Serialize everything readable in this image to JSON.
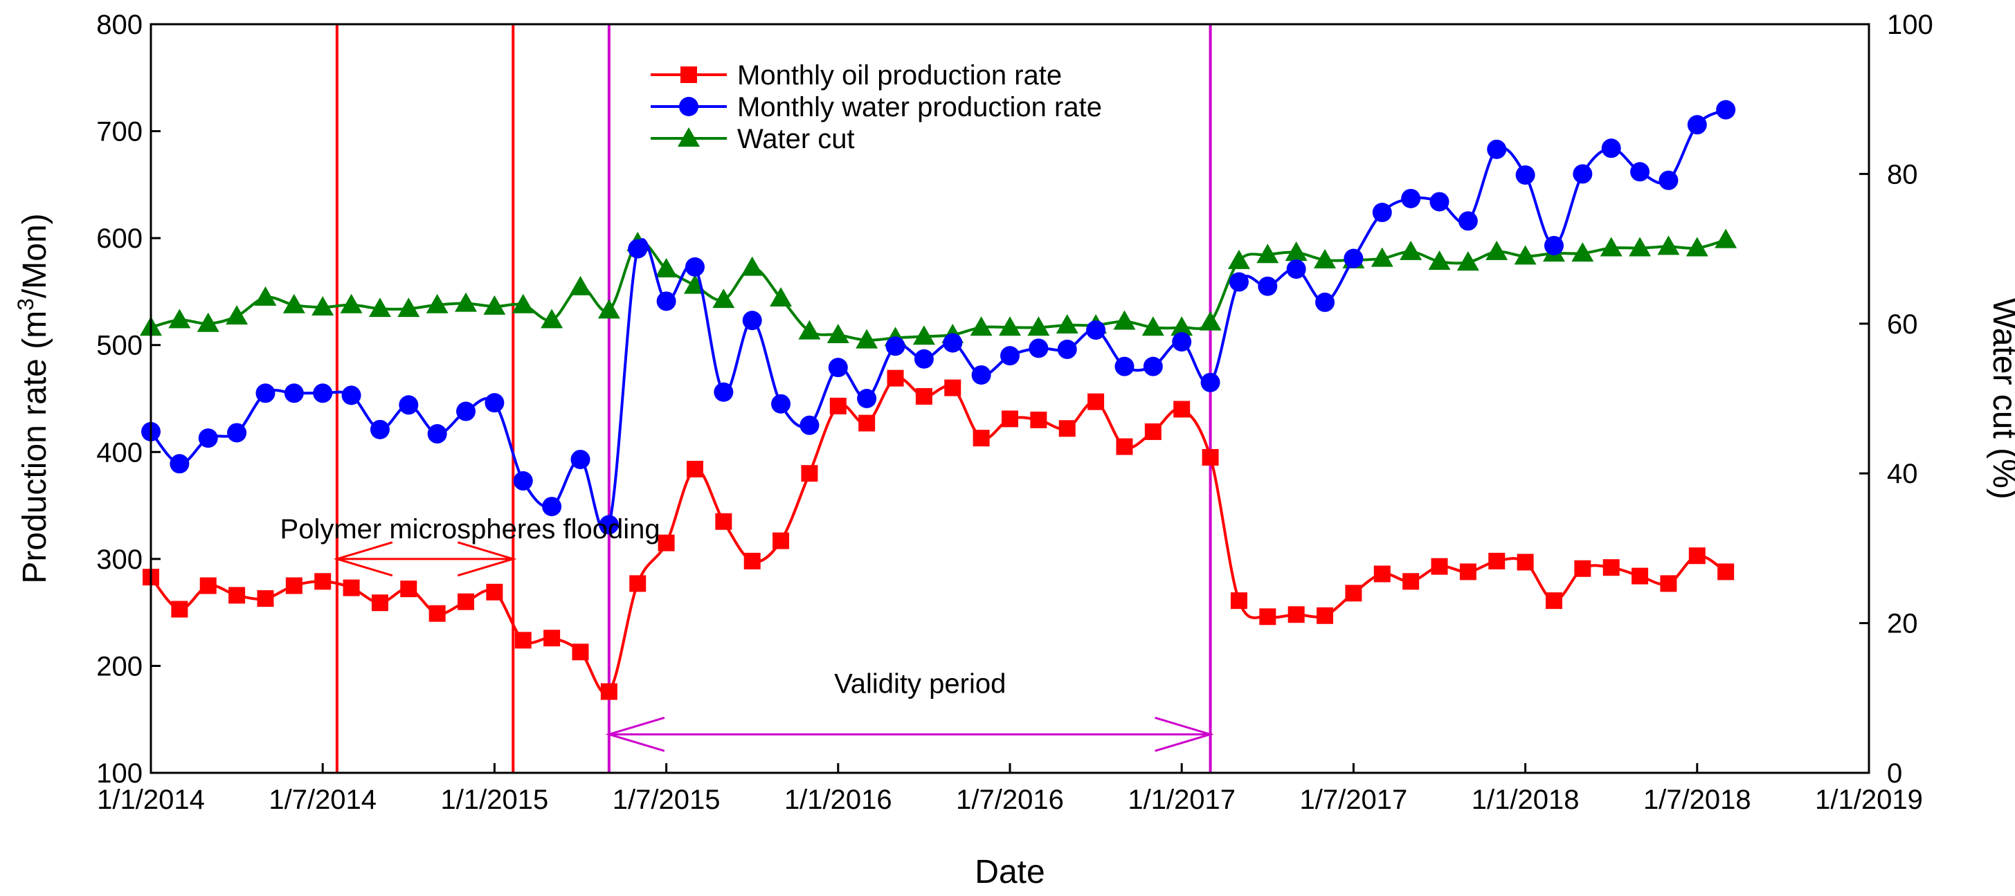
{
  "chart_data": {
    "type": "line",
    "xlabel": "Date",
    "ylabel": "Production rate (m3/Mon)",
    "ylabel_parts": {
      "pre": "Production rate (m",
      "sup": "3",
      "post": "/Mon)"
    },
    "y2label": "Water cut (%)",
    "ylim": [
      100,
      800
    ],
    "y2lim": [
      0,
      100
    ],
    "xlim_months": [
      0,
      60
    ],
    "x_ticks": [
      {
        "m": 0,
        "label": "1/1/2014"
      },
      {
        "m": 6,
        "label": "1/7/2014"
      },
      {
        "m": 12,
        "label": "1/1/2015"
      },
      {
        "m": 18,
        "label": "1/7/2015"
      },
      {
        "m": 24,
        "label": "1/1/2016"
      },
      {
        "m": 30,
        "label": "1/7/2016"
      },
      {
        "m": 36,
        "label": "1/1/2017"
      },
      {
        "m": 42,
        "label": "1/7/2017"
      },
      {
        "m": 48,
        "label": "1/1/2018"
      },
      {
        "m": 54,
        "label": "1/7/2018"
      },
      {
        "m": 60,
        "label": "1/1/2019"
      }
    ],
    "y_ticks": [
      100,
      200,
      300,
      400,
      500,
      600,
      700,
      800
    ],
    "y2_ticks": [
      0,
      20,
      40,
      60,
      80,
      100
    ],
    "grid": false,
    "legend_position": "top-center",
    "series": [
      {
        "name": "Monthly oil production rate",
        "axis": "left",
        "color": "#ff0000",
        "marker": "square",
        "values": [
          283,
          253,
          275,
          266,
          263,
          275,
          279,
          273,
          259,
          272,
          249,
          260,
          269,
          224,
          226,
          213,
          176,
          277,
          315,
          384,
          335,
          298,
          317,
          380,
          443,
          427,
          469,
          452,
          460,
          413,
          431,
          430,
          422,
          447,
          405,
          419,
          440,
          395,
          261,
          246,
          248,
          247,
          268,
          286,
          279,
          293,
          288,
          298,
          297,
          261,
          291,
          292,
          284,
          277,
          303,
          288
        ]
      },
      {
        "name": "Monthly water production rate",
        "axis": "left",
        "color": "#0000ff",
        "marker": "circle",
        "values": [
          419,
          389,
          413,
          418,
          455,
          455,
          455,
          453,
          421,
          444,
          417,
          438,
          446,
          373,
          349,
          393,
          332,
          590,
          541,
          573,
          456,
          523,
          445,
          425,
          479,
          450,
          499,
          487,
          502,
          472,
          490,
          497,
          496,
          514,
          480,
          480,
          503,
          465,
          559,
          555,
          571,
          540,
          581,
          624,
          637,
          634,
          616,
          683,
          659,
          593,
          660,
          684,
          662,
          654,
          706,
          720
        ]
      },
      {
        "name": "Water cut",
        "axis": "right",
        "color": "#008000",
        "marker": "triangle",
        "values": [
          59.5,
          60.5,
          60,
          61,
          63.5,
          62.5,
          62.2,
          62.5,
          62,
          62,
          62.5,
          62.7,
          62.3,
          62.5,
          60.5,
          64.9,
          61.8,
          70.8,
          67.3,
          65.1,
          63.2,
          67.5,
          63.4,
          59,
          58.5,
          57.8,
          58.1,
          58.3,
          58.5,
          59.5,
          59.5,
          59.5,
          59.8,
          59.8,
          60.3,
          59.5,
          59.5,
          60.2,
          68.4,
          69.2,
          69.5,
          68.5,
          68.5,
          68.7,
          69.6,
          68.3,
          68.2,
          69.6,
          69,
          69.4,
          69.4,
          70.1,
          70.1,
          70.3,
          70.1,
          71.2
        ]
      }
    ],
    "vertical_lines": [
      {
        "m": 6.5,
        "color": "#ff0000"
      },
      {
        "m": 12.65,
        "color": "#ff0000"
      },
      {
        "m": 16.0,
        "color": "#cc00cc"
      },
      {
        "m": 37.0,
        "color": "#cc00cc"
      }
    ],
    "annotations": [
      {
        "text": "Polymer microspheres flooding",
        "from_m": 6.5,
        "to_m": 12.65,
        "y": 300,
        "color": "#ff0000"
      },
      {
        "text": "Validity period",
        "from_m": 16.0,
        "to_m": 37.0,
        "y": 136,
        "color": "#cc00cc"
      }
    ]
  }
}
